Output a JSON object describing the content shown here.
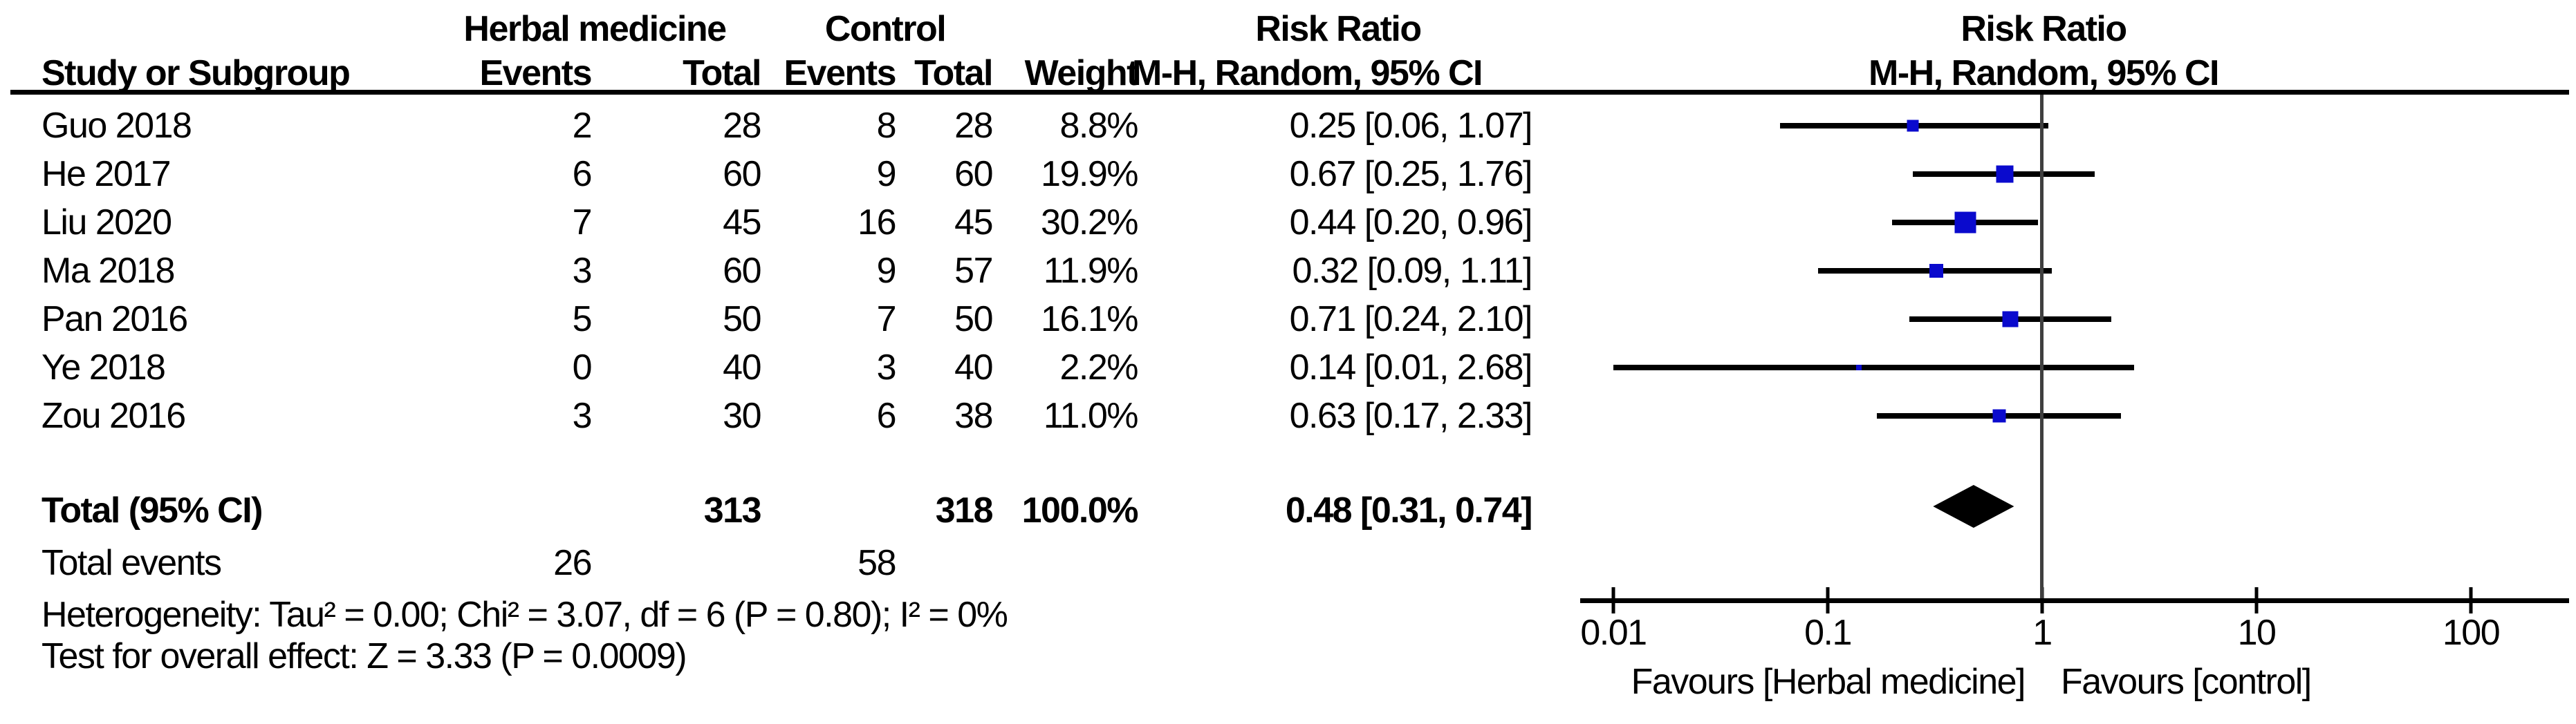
{
  "header": {
    "group1": "Herbal medicine",
    "group2": "Control",
    "effect_title_table": "Risk Ratio",
    "effect_title_plot": "Risk Ratio",
    "col_study": "Study or Subgroup",
    "col_events1": "Events",
    "col_total1": "Total",
    "col_events2": "Events",
    "col_total2": "Total",
    "col_weight": "Weight",
    "col_ci_table": "M-H, Random, 95% CI",
    "col_ci_plot": "M-H, Random, 95% CI"
  },
  "footer": {
    "total_label": "Total (95% CI)",
    "total_events_label": "Total events",
    "heterogeneity": "Heterogeneity: Tau² = 0.00; Chi² = 3.07, df = 6 (P = 0.80); I² = 0%",
    "overall_effect": "Test for overall effect: Z = 3.33 (P = 0.0009)"
  },
  "plot": {
    "favours_left": "Favours [Herbal medicine]",
    "favours_right": "Favours [control]",
    "marker_color": "#0a0acd",
    "diamond_color": "#000000",
    "centerline_color": "#3f3f3f",
    "scale": "log10"
  },
  "chart_data": {
    "type": "forest",
    "title": "Risk Ratio",
    "effect_measure": "M-H, Random, 95% CI",
    "x_scale": "log10",
    "x_ticks": [
      0.01,
      0.1,
      1,
      10,
      100
    ],
    "x_tick_labels": [
      "0.01",
      "0.1",
      "1",
      "10",
      "100"
    ],
    "xlim": [
      0.01,
      100
    ],
    "null_line": 1,
    "studies": [
      {
        "study": "Guo 2018",
        "events1": 2,
        "total1": 28,
        "events2": 8,
        "total2": 28,
        "weight_pct": 8.8,
        "rr": 0.25,
        "low": 0.06,
        "high": 1.07
      },
      {
        "study": "He 2017",
        "events1": 6,
        "total1": 60,
        "events2": 9,
        "total2": 60,
        "weight_pct": 19.9,
        "rr": 0.67,
        "low": 0.25,
        "high": 1.76
      },
      {
        "study": "Liu 2020",
        "events1": 7,
        "total1": 45,
        "events2": 16,
        "total2": 45,
        "weight_pct": 30.2,
        "rr": 0.44,
        "low": 0.2,
        "high": 0.96
      },
      {
        "study": "Ma 2018",
        "events1": 3,
        "total1": 60,
        "events2": 9,
        "total2": 57,
        "weight_pct": 11.9,
        "rr": 0.32,
        "low": 0.09,
        "high": 1.11
      },
      {
        "study": "Pan 2016",
        "events1": 5,
        "total1": 50,
        "events2": 7,
        "total2": 50,
        "weight_pct": 16.1,
        "rr": 0.71,
        "low": 0.24,
        "high": 2.1
      },
      {
        "study": "Ye 2018",
        "events1": 0,
        "total1": 40,
        "events2": 3,
        "total2": 40,
        "weight_pct": 2.2,
        "rr": 0.14,
        "low": 0.01,
        "high": 2.68
      },
      {
        "study": "Zou 2016",
        "events1": 3,
        "total1": 30,
        "events2": 6,
        "total2": 38,
        "weight_pct": 11.0,
        "rr": 0.63,
        "low": 0.17,
        "high": 2.33
      }
    ],
    "total": {
      "label": "Total (95% CI)",
      "total1": 313,
      "total2": 318,
      "weight_pct": 100.0,
      "rr": 0.48,
      "low": 0.31,
      "high": 0.74,
      "total_events1": 26,
      "total_events2": 58
    },
    "heterogeneity": "Tau² = 0.00; Chi² = 3.07, df = 6 (P = 0.80); I² = 0%",
    "overall_effect": "Z = 3.33 (P = 0.0009)",
    "favours_left": "Favours [Herbal medicine]",
    "favours_right": "Favours [control]",
    "legend_position": "none",
    "grid": false
  }
}
